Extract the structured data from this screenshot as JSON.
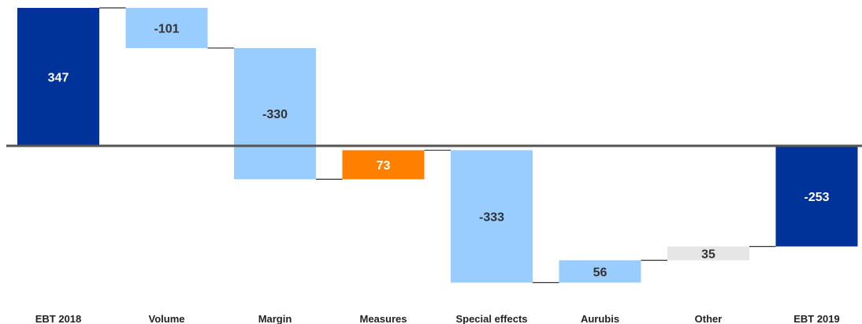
{
  "chart_data": {
    "type": "bar",
    "subtype": "waterfall",
    "categories": [
      "EBT 2018",
      "Volume",
      "Margin",
      "Measures",
      "Special effects",
      "Aurubis",
      "Other",
      "EBT 2019"
    ],
    "values": [
      347,
      -101,
      -330,
      73,
      -333,
      56,
      35,
      -253
    ],
    "kinds": [
      "total",
      "delta",
      "delta",
      "delta",
      "delta",
      "delta",
      "delta",
      "total"
    ],
    "value_labels": [
      "347",
      "-101",
      "-330",
      "73",
      "-333",
      "56",
      "35",
      "-253"
    ],
    "colors": {
      "total": "#003399",
      "negative": "#99ccff",
      "measures": "#ff7f00",
      "positive": "#99ccff",
      "other": "#e6e6e6",
      "axis": "#555555",
      "connector": "#333333",
      "label_light": "#ffffff",
      "label_dark": "#333333"
    },
    "bar_colors": [
      "total",
      "negative",
      "negative",
      "measures",
      "negative",
      "positive",
      "other",
      "total"
    ],
    "label_colors": [
      "label_light",
      "label_dark",
      "label_dark",
      "label_light",
      "label_dark",
      "label_dark",
      "label_dark",
      "label_light"
    ],
    "ylim": [
      -345,
      350
    ],
    "grid": false,
    "legend": "none"
  }
}
